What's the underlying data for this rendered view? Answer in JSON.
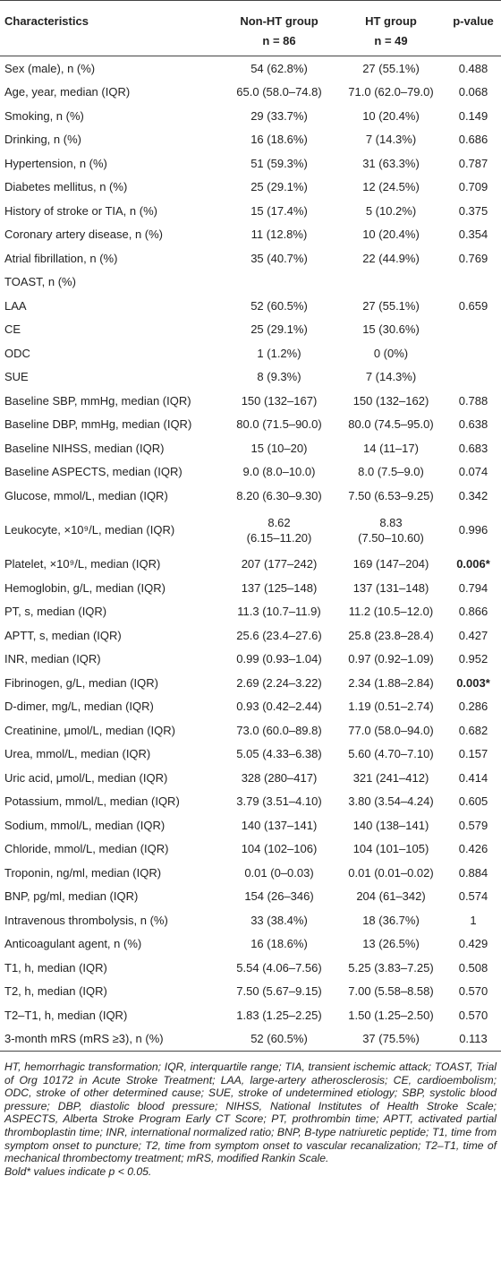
{
  "table": {
    "header": [
      [
        "Characteristics"
      ],
      [
        "Non-HT group",
        "n = 86"
      ],
      [
        "HT group",
        "n = 49"
      ],
      [
        "p-value"
      ]
    ],
    "rows": [
      [
        "Sex (male), n (%)",
        "54 (62.8%)",
        "27 (55.1%)",
        "0.488"
      ],
      [
        "Age, year, median (IQR)",
        "65.0 (58.0–74.8)",
        "71.0 (62.0–79.0)",
        "0.068"
      ],
      [
        "Smoking, n (%)",
        "29 (33.7%)",
        "10 (20.4%)",
        "0.149"
      ],
      [
        "Drinking, n (%)",
        "16 (18.6%)",
        "7 (14.3%)",
        "0.686"
      ],
      [
        "Hypertension, n (%)",
        "51 (59.3%)",
        "31 (63.3%)",
        "0.787"
      ],
      [
        "Diabetes mellitus, n (%)",
        "25 (29.1%)",
        "12 (24.5%)",
        "0.709"
      ],
      [
        "History of stroke or TIA, n (%)",
        "15 (17.4%)",
        "5 (10.2%)",
        "0.375"
      ],
      [
        "Coronary artery disease, n (%)",
        "11 (12.8%)",
        "10 (20.4%)",
        "0.354"
      ],
      [
        "Atrial fibrillation, n (%)",
        "35 (40.7%)",
        "22 (44.9%)",
        "0.769"
      ],
      [
        "TOAST, n (%)",
        null,
        null,
        null
      ],
      [
        "LAA",
        "52 (60.5%)",
        "27 (55.1%)",
        "0.659"
      ],
      [
        "CE",
        "25 (29.1%)",
        "15 (30.6%)",
        null
      ],
      [
        "ODC",
        "1 (1.2%)",
        "0 (0%)",
        null
      ],
      [
        "SUE",
        "8 (9.3%)",
        "7 (14.3%)",
        null
      ],
      [
        "Baseline SBP, mmHg, median (IQR)",
        "150 (132–167)",
        "150 (132–162)",
        "0.788"
      ],
      [
        "Baseline DBP, mmHg, median (IQR)",
        "80.0 (71.5–90.0)",
        "80.0 (74.5–95.0)",
        "0.638"
      ],
      [
        "Baseline NIHSS, median (IQR)",
        "15 (10–20)",
        "14 (11–17)",
        "0.683"
      ],
      [
        "Baseline ASPECTS, median (IQR)",
        "9.0 (8.0–10.0)",
        "8.0 (7.5–9.0)",
        "0.074"
      ],
      [
        "Glucose, mmol/L, median (IQR)",
        "8.20 (6.30–9.30)",
        "7.50 (6.53–9.25)",
        "0.342"
      ],
      [
        "Leukocyte, ×10⁹/L, median (IQR)",
        "8.62\n(6.15–11.20)",
        "8.83\n(7.50–10.60)",
        "0.996"
      ],
      [
        "Platelet, ×10⁹/L, median (IQR)",
        "207 (177–242)",
        "169 (147–204)",
        "0.006*"
      ],
      [
        "Hemoglobin, g/L, median (IQR)",
        "137 (125–148)",
        "137 (131–148)",
        "0.794"
      ],
      [
        "PT, s, median (IQR)",
        "11.3 (10.7–11.9)",
        "11.2 (10.5–12.0)",
        "0.866"
      ],
      [
        "APTT, s, median (IQR)",
        "25.6 (23.4–27.6)",
        "25.8 (23.8–28.4)",
        "0.427"
      ],
      [
        "INR, median (IQR)",
        "0.99 (0.93–1.04)",
        "0.97 (0.92–1.09)",
        "0.952"
      ],
      [
        "Fibrinogen, g/L, median (IQR)",
        "2.69 (2.24–3.22)",
        "2.34 (1.88–2.84)",
        "0.003*"
      ],
      [
        "D-dimer, mg/L, median (IQR)",
        "0.93 (0.42–2.44)",
        "1.19 (0.51–2.74)",
        "0.286"
      ],
      [
        "Creatinine, μmol/L, median (IQR)",
        "73.0 (60.0–89.8)",
        "77.0 (58.0–94.0)",
        "0.682"
      ],
      [
        "Urea, mmol/L, median (IQR)",
        "5.05 (4.33–6.38)",
        "5.60 (4.70–7.10)",
        "0.157"
      ],
      [
        "Uric acid, μmol/L, median (IQR)",
        "328 (280–417)",
        "321 (241–412)",
        "0.414"
      ],
      [
        "Potassium, mmol/L, median (IQR)",
        "3.79 (3.51–4.10)",
        "3.80 (3.54–4.24)",
        "0.605"
      ],
      [
        "Sodium, mmol/L, median (IQR)",
        "140 (137–141)",
        "140 (138–141)",
        "0.579"
      ],
      [
        "Chloride, mmol/L, median (IQR)",
        "104 (102–106)",
        "104 (101–105)",
        "0.426"
      ],
      [
        "Troponin, ng/ml, median (IQR)",
        "0.01 (0–0.03)",
        "0.01 (0.01–0.02)",
        "0.884"
      ],
      [
        "BNP, pg/ml, median (IQR)",
        "154 (26–346)",
        "204 (61–342)",
        "0.574"
      ],
      [
        "Intravenous thrombolysis, n (%)",
        "33 (38.4%)",
        "18 (36.7%)",
        "1"
      ],
      [
        "Anticoagulant agent, n (%)",
        "16 (18.6%)",
        "13 (26.5%)",
        "0.429"
      ],
      [
        "T1, h, median (IQR)",
        "5.54 (4.06–7.56)",
        "5.25 (3.83–7.25)",
        "0.508"
      ],
      [
        "T2, h, median (IQR)",
        "7.50 (5.67–9.15)",
        "7.00 (5.58–8.58)",
        "0.570"
      ],
      [
        "T2–T1, h, median (IQR)",
        "1.83 (1.25–2.25)",
        "1.50 (1.25–2.50)",
        "0.570"
      ],
      [
        "3-month mRS (mRS ≥3), n (%)",
        "52 (60.5%)",
        "37 (75.5%)",
        "0.113"
      ]
    ]
  },
  "footnote": {
    "text": "HT, hemorrhagic transformation; IQR, interquartile range; TIA, transient ischemic attack; TOAST, Trial of Org 10172 in Acute Stroke Treatment; LAA, large-artery atherosclerosis; CE, cardioembolism; ODC, stroke of other determined cause; SUE, stroke of undetermined etiology; SBP, systolic blood pressure; DBP, diastolic blood pressure; NIHSS, National Institutes of Health Stroke Scale; ASPECTS, Alberta Stroke Program Early CT Score; PT, prothrombin time; APTT, activated partial thromboplastin time; INR, international normalized ratio; BNP, B-type natriuretic peptide; T1, time from symptom onset to puncture; T2, time from symptom onset to vascular recanalization; T2–T1, time of mechanical thrombectomy treatment; mRS, modified Rankin Scale.",
    "note": "Bold* values indicate p < 0.05."
  }
}
